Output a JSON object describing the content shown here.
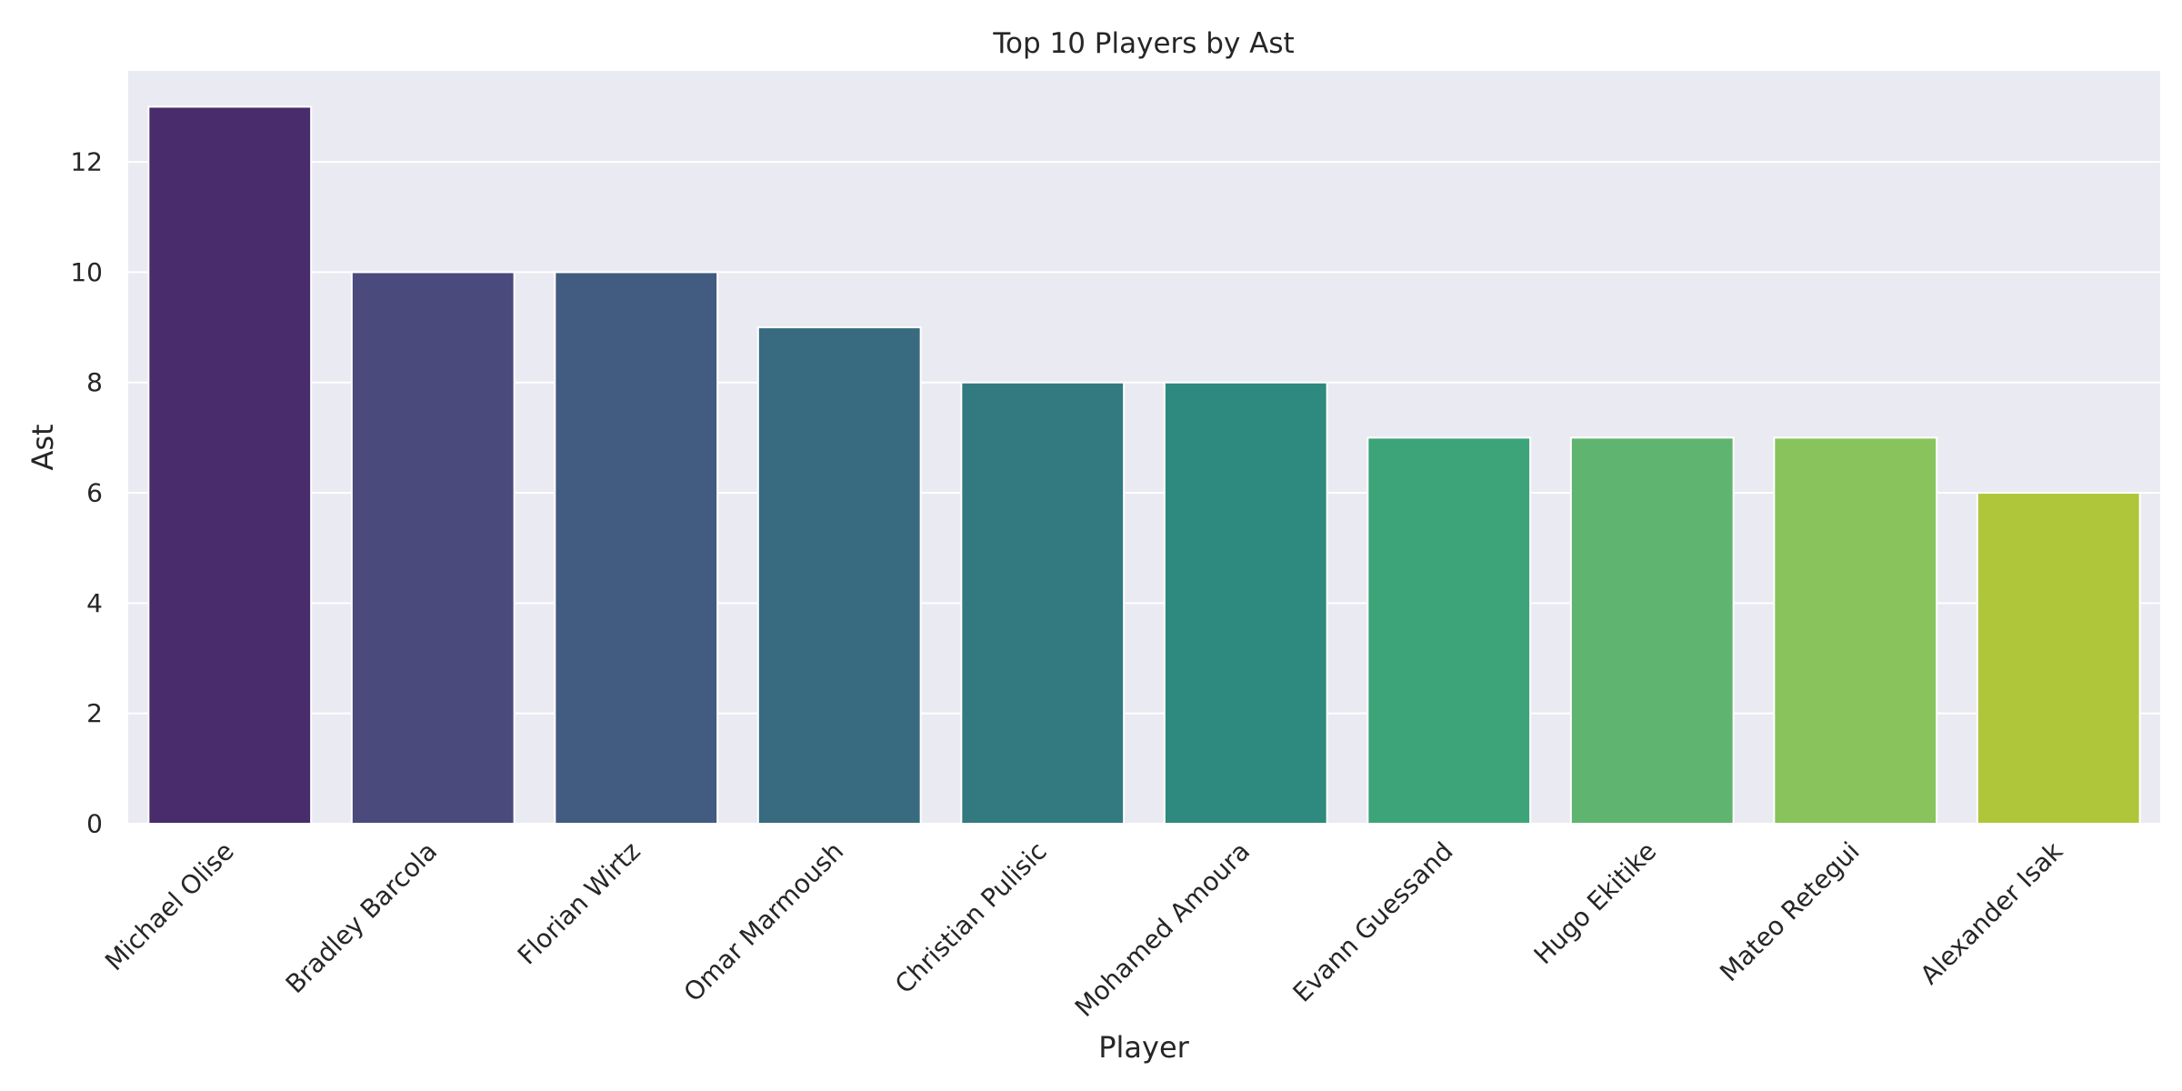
{
  "chart_data": {
    "type": "bar",
    "title": "Top 10 Players by Ast",
    "xlabel": "Player",
    "ylabel": "Ast",
    "categories": [
      "Michael Olise",
      "Bradley Barcola",
      "Florian Wirtz",
      "Omar Marmoush",
      "Christian Pulisic",
      "Mohamed Amoura",
      "Evann Guessand",
      "Hugo Ekitike",
      "Mateo Retegui",
      "Alexander Isak"
    ],
    "values": [
      13,
      10,
      10,
      9,
      8,
      8,
      7,
      7,
      7,
      6
    ],
    "colors": [
      "#482c6b",
      "#4a4a7c",
      "#425b80",
      "#386b80",
      "#327a80",
      "#2e897e",
      "#3da47a",
      "#5fb46f",
      "#88c45b",
      "#afc63a"
    ],
    "yticks": [
      "0",
      "2",
      "4",
      "6",
      "8",
      "10",
      "12"
    ],
    "ylim": [
      0,
      13.65
    ],
    "grid": true,
    "background": "#eaeaf2",
    "grid_color": "#ffffff"
  }
}
